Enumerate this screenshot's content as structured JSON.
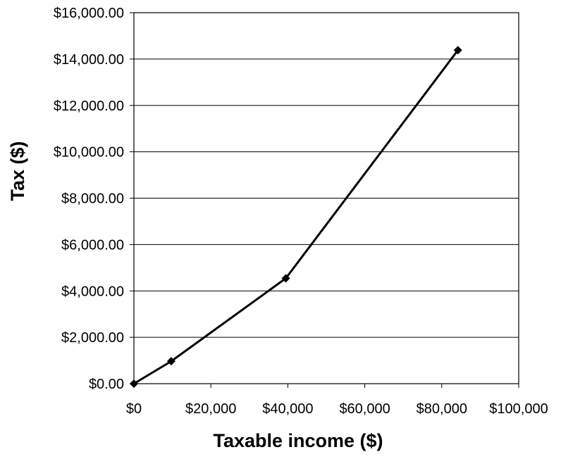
{
  "chart_data": {
    "type": "line",
    "title": "",
    "xlabel": "Taxable income ($)",
    "ylabel": "Tax ($)",
    "x": [
      0,
      9700,
      39475,
      84200
    ],
    "series": [
      {
        "name": "",
        "values": [
          0,
          970,
          4543,
          14382
        ],
        "color": "#000000",
        "marker": "diamond"
      }
    ],
    "xlim": [
      0,
      100000
    ],
    "ylim": [
      0,
      16000
    ],
    "xticks": [
      0,
      20000,
      40000,
      60000,
      80000,
      100000
    ],
    "xtick_labels": [
      "$0",
      "$20,000",
      "$40,000",
      "$60,000",
      "$80,000",
      "$100,000"
    ],
    "yticks": [
      0,
      2000,
      4000,
      6000,
      8000,
      10000,
      12000,
      14000,
      16000
    ],
    "ytick_labels": [
      "$0.00",
      "$2,000.00",
      "$4,000.00",
      "$6,000.00",
      "$8,000.00",
      "$10,000.00",
      "$12,000.00",
      "$14,000.00",
      "$16,000.00"
    ],
    "grid": "horizontal",
    "legend": "none"
  }
}
